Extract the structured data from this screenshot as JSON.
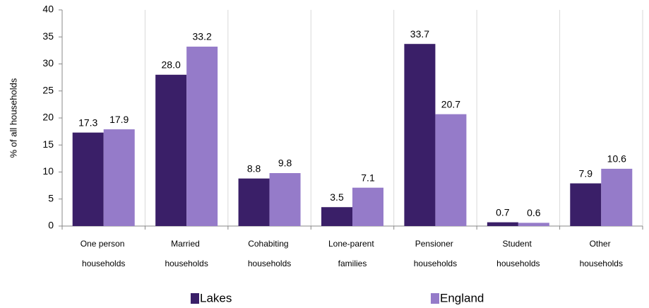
{
  "chart_data": {
    "type": "bar",
    "y_label": "% of all households",
    "categories": [
      "One person households",
      "Married households",
      "Cohabiting households",
      "Lone-parent families",
      "Pensioner households",
      "Student households",
      "Other households"
    ],
    "series": [
      {
        "name": "Lakes",
        "color": "#3a1f68",
        "values": [
          17.3,
          28.0,
          8.8,
          3.5,
          33.7,
          0.7,
          7.9
        ],
        "value_labels": [
          "17.3",
          "28.0",
          "8.8",
          "3.5",
          "33.7",
          "0.7",
          "7.9"
        ]
      },
      {
        "name": "England",
        "color": "#957bc9",
        "values": [
          17.9,
          33.2,
          9.8,
          7.1,
          20.7,
          0.6,
          10.6
        ],
        "value_labels": [
          "17.9",
          "33.2",
          "9.8",
          "7.1",
          "20.7",
          "0.6",
          "10.6"
        ]
      }
    ],
    "ylim": [
      0,
      40
    ],
    "yticks": [
      0,
      5,
      10,
      15,
      20,
      25,
      30,
      35,
      40
    ],
    "grid": true,
    "legend": "bottom"
  }
}
